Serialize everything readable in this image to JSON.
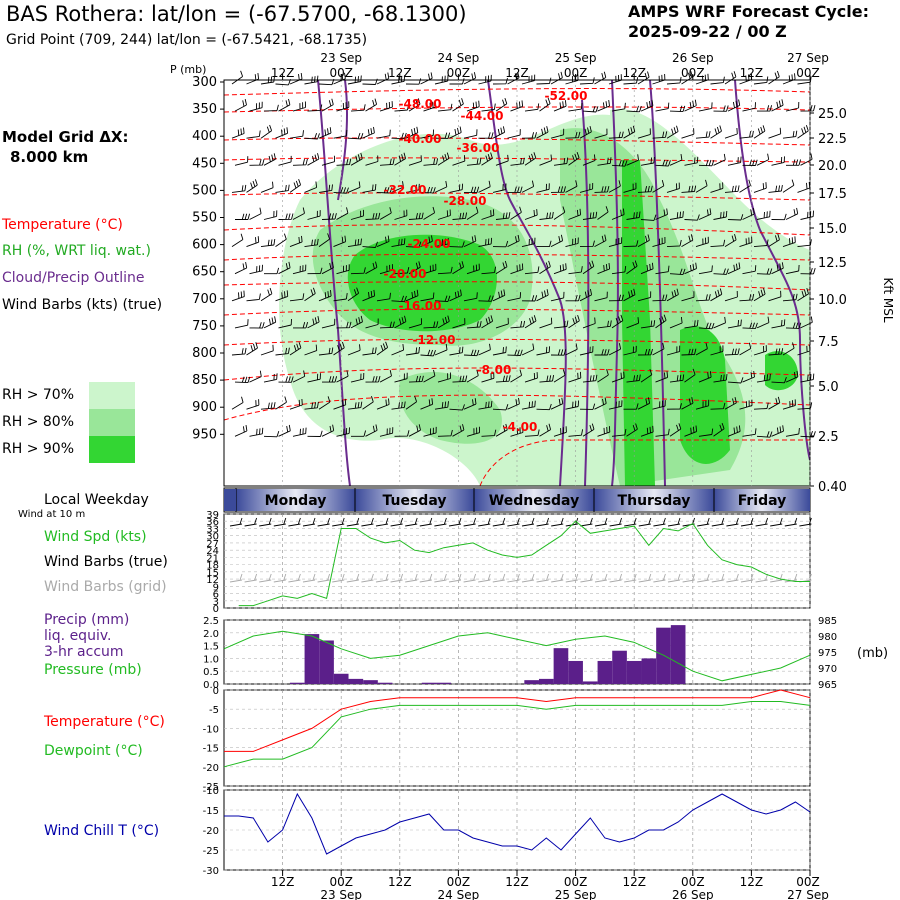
{
  "header": {
    "title": "BAS Rothera:  lat/lon = (-67.5700, -68.1300)",
    "subtitle": "Grid Point (709, 244) lat/lon = (-67.5421, -68.1735)",
    "forecast_title": "AMPS WRF Forecast Cycle:",
    "forecast_cycle": "2025-09-22 / 00  Z"
  },
  "model": {
    "label": "Model Grid ΔX:",
    "value": "8.000 km"
  },
  "legend_left": {
    "temperature": "Temperature (°C)",
    "rh": "RH (%, WRT liq. wat.)",
    "cloud": "Cloud/Precip Outline",
    "wind": "Wind Barbs (kts) (true)",
    "rh70": "RH > 70%",
    "rh80": "RH > 80%",
    "rh90": "RH > 90%"
  },
  "colors": {
    "rh70": "#ccf5cc",
    "rh80": "#99e699",
    "rh90": "#33d633",
    "temp": "#ff0000",
    "cloud": "#6a2c8e",
    "wind_green": "#22bb22",
    "precip": "#5b1f8a",
    "windchill": "#0000aa",
    "day_band": "#5a6aad"
  },
  "time_axis": {
    "top_hours": [
      "12Z",
      "00Z",
      "12Z",
      "00Z",
      "12Z",
      "00Z",
      "12Z",
      "00Z",
      "12Z",
      "00Z"
    ],
    "top_dates": [
      "23 Sep",
      "24 Sep",
      "25 Sep",
      "26 Sep",
      "27 Sep"
    ],
    "bottom_hours": [
      "12Z",
      "00Z",
      "12Z",
      "00Z",
      "12Z",
      "00Z",
      "12Z",
      "00Z",
      "12Z",
      "00Z"
    ],
    "bottom_dates": [
      "23 Sep",
      "24 Sep",
      "25 Sep",
      "26 Sep",
      "27 Sep"
    ]
  },
  "pressure_axis": {
    "label": "P (mb)",
    "levels": [
      "300",
      "350",
      "400",
      "450",
      "500",
      "550",
      "600",
      "650",
      "700",
      "750",
      "800",
      "850",
      "900",
      "950"
    ]
  },
  "height_axis": {
    "label": "Kft MSL",
    "ticks": [
      "25.0",
      "22.5",
      "20.0",
      "17.5",
      "15.0",
      "12.5",
      "10.0",
      "7.5",
      "5.0",
      "2.5",
      "0.40"
    ]
  },
  "weekday": {
    "label": "Local Weekday",
    "wind_note": "Wind at 10 m",
    "days": [
      "Monday",
      "Tuesday",
      "Wednesday",
      "Thursday",
      "Friday"
    ]
  },
  "wind_panel": {
    "labels": {
      "spd": "Wind Spd (kts)",
      "barbs_true": "Wind Barbs (true)",
      "barbs_grid": "Wind Barbs (grid)"
    },
    "yticks": [
      "39",
      "36",
      "33",
      "30",
      "27",
      "24",
      "21",
      "18",
      "15",
      "12",
      "9",
      "6",
      "3",
      "0"
    ]
  },
  "precip_panel": {
    "labels": {
      "precip": "Precip (mm)",
      "liq": "liq. equiv.",
      "accum": "3-hr accum",
      "pressure": "Pressure (mb)"
    },
    "yticks_left": [
      "2.5",
      "2.0",
      "1.5",
      "1.0",
      "0.5",
      "0.0"
    ],
    "yticks_right": [
      "985",
      "980",
      "975",
      "970",
      "965"
    ],
    "right_unit": "(mb)"
  },
  "temp_panel": {
    "labels": {
      "temp": "Temperature (°C)",
      "dew": "Dewpoint (°C)"
    },
    "yticks": [
      "0",
      "-5",
      "-10",
      "-15",
      "-20",
      "-25"
    ]
  },
  "chill_panel": {
    "labels": {
      "chill": "Wind Chill T (°C)"
    },
    "yticks": [
      "-10",
      "-15",
      "-20",
      "-25",
      "-30"
    ]
  },
  "section_labels": {
    "temps": [
      "-52.00",
      "-48.00",
      "-44.00",
      "-40.00",
      "-36.00",
      "-32.00",
      "-28.00",
      "-24.00",
      "-20.00",
      "-16.00",
      "-12.00",
      "-8.00",
      "-4.00"
    ]
  },
  "chart_data": [
    {
      "type": "line",
      "panel": "wind_speed",
      "x_hours": [
        3,
        6,
        9,
        12,
        15,
        18,
        21,
        24,
        27,
        30,
        33,
        36,
        39,
        42,
        45,
        48,
        51,
        54,
        57,
        60,
        63,
        66,
        69,
        72,
        75,
        78,
        81,
        84,
        87,
        90,
        93,
        96,
        99,
        102,
        105,
        108,
        111,
        114,
        117,
        120
      ],
      "series": [
        {
          "name": "Wind Spd (kts)",
          "values": [
            1,
            1,
            3,
            5,
            4,
            6,
            4,
            33,
            33,
            29,
            27,
            28,
            24,
            23,
            25,
            26,
            27,
            24,
            22,
            21,
            22,
            26,
            30,
            36,
            31,
            32,
            33,
            34,
            26,
            33,
            32,
            35,
            26,
            20,
            18,
            17,
            14,
            12,
            11,
            11
          ]
        }
      ],
      "ylim": [
        0,
        39
      ]
    },
    {
      "type": "bar",
      "panel": "precip",
      "x_hours": [
        15,
        18,
        21,
        24,
        27,
        30,
        33,
        36,
        39,
        42,
        45,
        48,
        51,
        54,
        57,
        60,
        63,
        66,
        69,
        72,
        75,
        78,
        81,
        84,
        87,
        90,
        93,
        96,
        99
      ],
      "values": [
        0.05,
        1.95,
        1.7,
        0.4,
        0.2,
        0.15,
        0.05,
        0.0,
        0.0,
        0.05,
        0.05,
        0.0,
        0.0,
        0.0,
        0.0,
        0.0,
        0.15,
        0.2,
        1.4,
        0.9,
        0.1,
        0.9,
        1.3,
        0.9,
        1.0,
        2.2,
        2.3,
        0.0,
        0.0
      ],
      "ylim": [
        0,
        2.5
      ]
    },
    {
      "type": "line",
      "panel": "pressure",
      "x_hours": [
        0,
        6,
        12,
        18,
        24,
        30,
        36,
        42,
        48,
        54,
        60,
        66,
        72,
        78,
        84,
        90,
        96,
        102,
        108,
        114,
        120
      ],
      "series": [
        {
          "name": "Pressure (mb)",
          "values": [
            976,
            980,
            981.5,
            980,
            976,
            973,
            974,
            977,
            980,
            981,
            979,
            977,
            979,
            980,
            978,
            974,
            969,
            966,
            968,
            970,
            974
          ]
        }
      ],
      "ylim": [
        965,
        985
      ]
    },
    {
      "type": "line",
      "panel": "temperature",
      "x_hours": [
        0,
        6,
        12,
        18,
        24,
        30,
        36,
        42,
        48,
        54,
        60,
        66,
        72,
        78,
        84,
        90,
        96,
        102,
        108,
        114,
        120
      ],
      "series": [
        {
          "name": "Temperature (°C)",
          "values": [
            -16,
            -16,
            -13,
            -10,
            -5,
            -3,
            -2,
            -2,
            -2,
            -2,
            -2,
            -3,
            -2,
            -2,
            -2,
            -2,
            -2,
            -2,
            -2,
            0,
            -2
          ]
        },
        {
          "name": "Dewpoint (°C)",
          "values": [
            -20,
            -18,
            -18,
            -15,
            -7,
            -5,
            -4,
            -4,
            -4,
            -4,
            -4,
            -5,
            -4,
            -4,
            -4,
            -4,
            -4,
            -4,
            -3,
            -3,
            -4
          ]
        }
      ],
      "ylim": [
        -25,
        0
      ]
    },
    {
      "type": "line",
      "panel": "wind_chill",
      "x_hours": [
        0,
        3,
        6,
        9,
        12,
        15,
        18,
        21,
        24,
        27,
        30,
        33,
        36,
        39,
        42,
        45,
        48,
        51,
        54,
        57,
        60,
        63,
        66,
        69,
        72,
        75,
        78,
        81,
        84,
        87,
        90,
        93,
        96,
        99,
        102,
        105,
        108,
        111,
        114,
        117,
        120
      ],
      "series": [
        {
          "name": "Wind Chill T (°C)",
          "values": [
            -16.5,
            -16.5,
            -17,
            -23,
            -20,
            -11,
            -17,
            -26,
            -24,
            -22,
            -21,
            -20,
            -18,
            -17,
            -16,
            -20,
            -20,
            -22,
            -23,
            -24,
            -24,
            -25,
            -22,
            -25,
            -21,
            -17,
            -22,
            -23,
            -22,
            -20,
            -20,
            -18,
            -15,
            -13,
            -11,
            -13,
            -15,
            -16,
            -15,
            -13,
            -15.5
          ]
        }
      ],
      "ylim": [
        -30,
        -10
      ]
    }
  ]
}
